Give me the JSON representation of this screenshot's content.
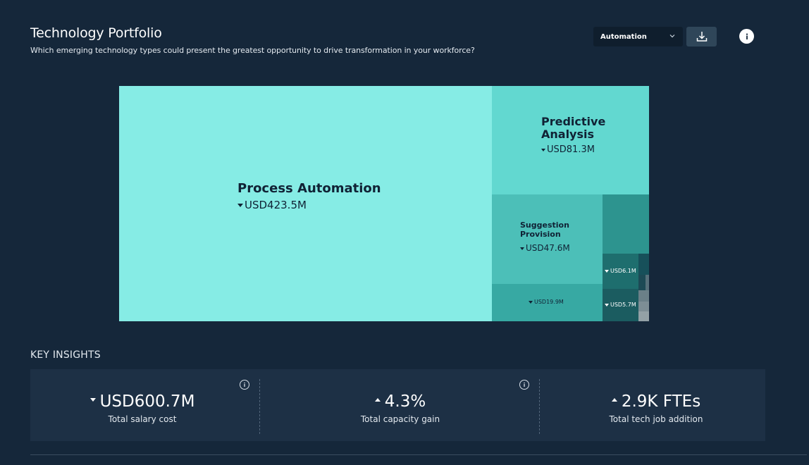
{
  "header": {
    "title": "Technology Portfolio",
    "subtitle": "Which emerging technology types could present the greatest opportunity to drive transformation in your workforce?"
  },
  "toolbar": {
    "select_value": "Automation",
    "download_icon": "download-icon",
    "info_icon": "info-icon"
  },
  "treemap": {
    "cells": [
      {
        "label": "Process Automation",
        "value": "USD423.5M",
        "color": "#86ece5"
      },
      {
        "label_line1": "Predictive",
        "label_line2": "Analysis",
        "value": "USD81.3M",
        "color": "#62d8d0"
      },
      {
        "label_line1": "Suggestion",
        "label_line2": "Provision",
        "value": "USD47.6M",
        "color": "#4cbfb8"
      },
      {
        "value": "USD19.9M",
        "color": "#37a9a3"
      },
      {
        "value": "USD6.1M",
        "color": "#1e6e6e"
      },
      {
        "value": "USD5.7M",
        "color": "#1b5c60"
      }
    ]
  },
  "key_insights": {
    "heading": "KEY INSIGHTS",
    "cards": [
      {
        "value": "USD600.7M",
        "label": "Total salary cost",
        "trend": "down"
      },
      {
        "value": "4.3%",
        "label": "Total capacity gain",
        "trend": "up"
      },
      {
        "value": "2.9K FTEs",
        "label": "Total tech job addition",
        "trend": "up"
      }
    ]
  },
  "colors": {
    "background": "#15273a",
    "panel": "#1d3045"
  }
}
